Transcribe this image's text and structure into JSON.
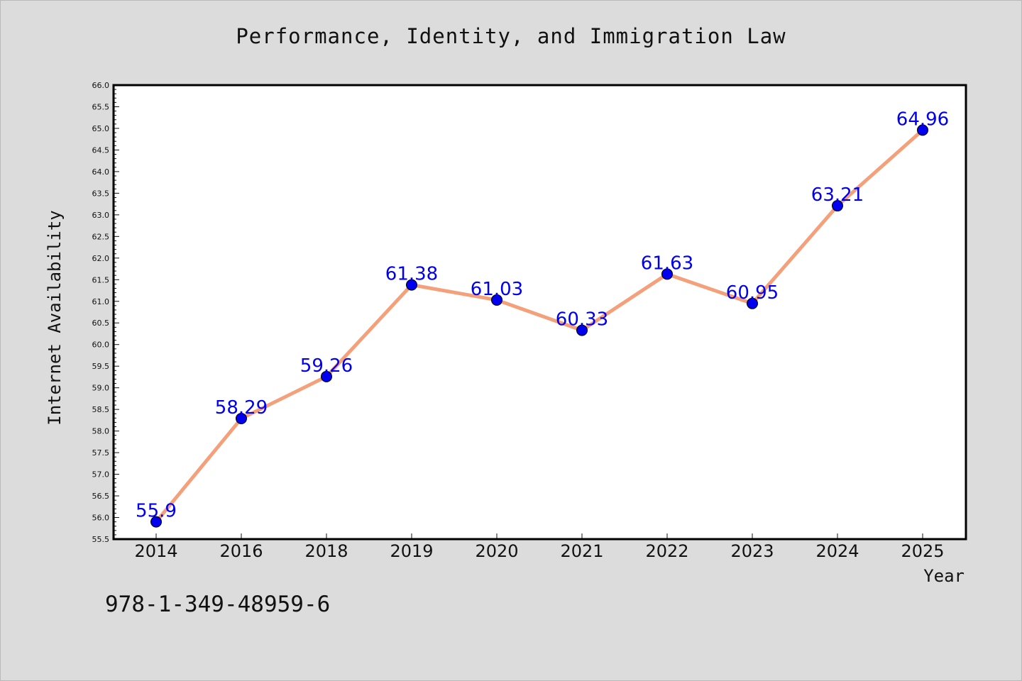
{
  "title": "Performance, Identity, and Immigration Law",
  "footer_code": "978-1-349-48959-6",
  "chart_data": {
    "type": "line",
    "title": "Performance, Identity, and Immigration Law",
    "xlabel": "Year",
    "ylabel": "Internet Availability",
    "categories": [
      "2014",
      "2016",
      "2018",
      "2019",
      "2020",
      "2021",
      "2022",
      "2023",
      "2024",
      "2025"
    ],
    "series": [
      {
        "values": [
          55.9,
          58.29,
          59.26,
          61.38,
          61.03,
          60.33,
          61.63,
          60.95,
          63.21,
          64.96
        ],
        "labels": [
          "55.9",
          "58.29",
          "59.26",
          "61.38",
          "61.03",
          "60.33",
          "61.63",
          "60.95",
          "63.21",
          "64.96"
        ],
        "line_color": "#f4a07a",
        "marker_color": "#0000ee"
      }
    ],
    "ylim": [
      55.5,
      66.0
    ],
    "y_ticks": [
      "55.5",
      "56.0",
      "56.5",
      "57.0",
      "57.5",
      "58.0",
      "58.5",
      "59.0",
      "59.5",
      "60.0",
      "60.5",
      "61.0",
      "61.5",
      "62.0",
      "62.5",
      "63.0",
      "63.5",
      "64.0",
      "64.5",
      "65.0",
      "65.5",
      "66.0"
    ],
    "grid": false,
    "legend": "none"
  }
}
